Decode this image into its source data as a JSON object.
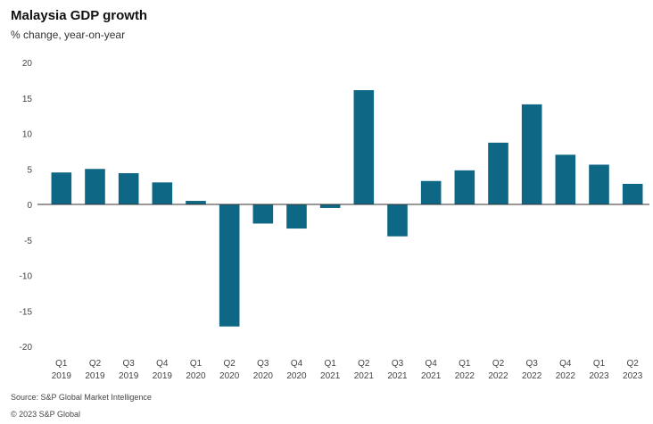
{
  "chart_data": {
    "type": "bar",
    "title": "Malaysia GDP growth",
    "subtitle": "% change, year-on-year",
    "categories": [
      [
        "Q1",
        "2019"
      ],
      [
        "Q2",
        "2019"
      ],
      [
        "Q3",
        "2019"
      ],
      [
        "Q4",
        "2019"
      ],
      [
        "Q1",
        "2020"
      ],
      [
        "Q2",
        "2020"
      ],
      [
        "Q3",
        "2020"
      ],
      [
        "Q4",
        "2020"
      ],
      [
        "Q1",
        "2021"
      ],
      [
        "Q2",
        "2021"
      ],
      [
        "Q3",
        "2021"
      ],
      [
        "Q4",
        "2021"
      ],
      [
        "Q1",
        "2022"
      ],
      [
        "Q2",
        "2022"
      ],
      [
        "Q3",
        "2022"
      ],
      [
        "Q4",
        "2022"
      ],
      [
        "Q1",
        "2023"
      ],
      [
        "Q2",
        "2023"
      ]
    ],
    "values": [
      4.5,
      5.0,
      4.4,
      3.1,
      0.5,
      -17.2,
      -2.7,
      -3.4,
      -0.5,
      16.1,
      -4.5,
      3.3,
      4.8,
      8.7,
      14.1,
      7.0,
      5.6,
      2.9
    ],
    "yticks": [
      20,
      15,
      10,
      5,
      0,
      -5,
      -10,
      -15,
      -20
    ],
    "ylim": [
      -20,
      20
    ],
    "bar_color": "#0f6786",
    "grid": false,
    "source": "Source: S&P Global Market Intelligence",
    "copyright": "© 2023 S&P Global"
  }
}
